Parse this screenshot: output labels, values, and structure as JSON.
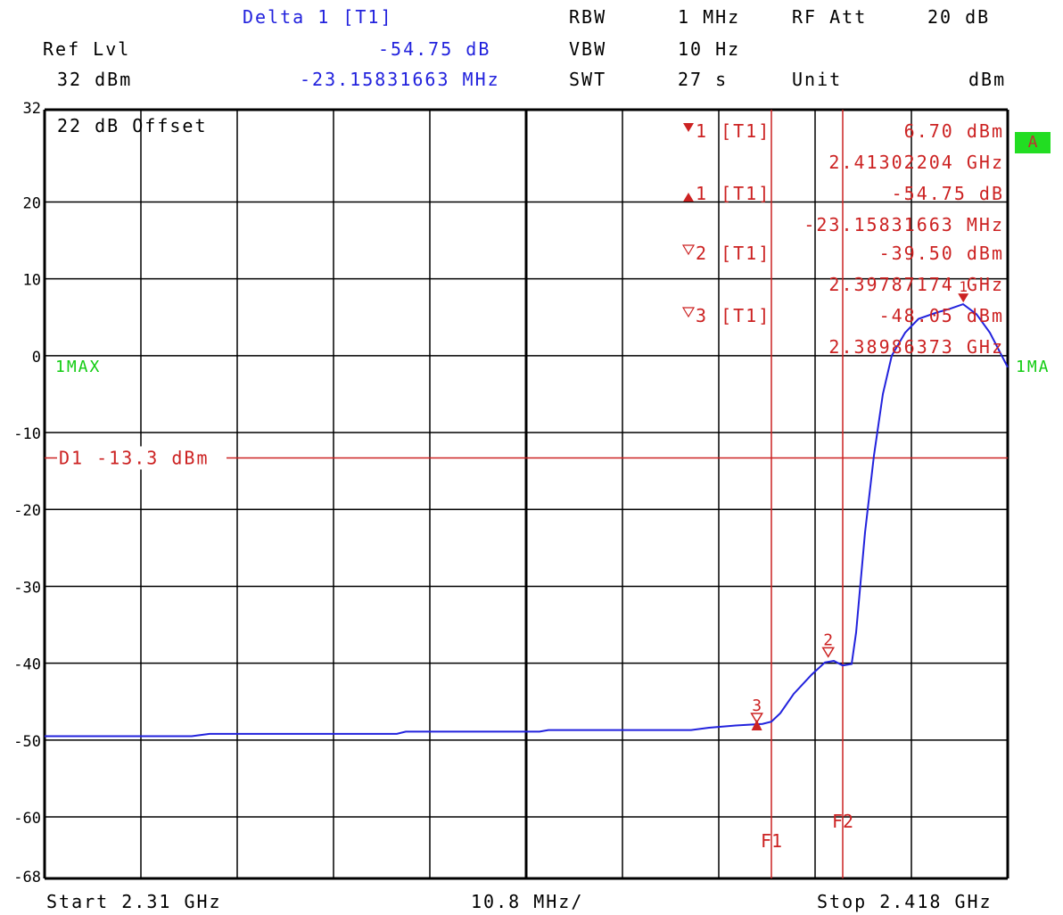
{
  "header": {
    "delta_title": "Delta 1 [T1]",
    "delta_value": "-54.75 dB",
    "delta_freq": "-23.15831663 MHz",
    "ref_lvl_label": "Ref Lvl",
    "ref_lvl_value": "32 dBm",
    "rbw_label": "RBW",
    "rbw_value": "1 MHz",
    "vbw_label": "VBW",
    "vbw_value": "10 Hz",
    "swt_label": "SWT",
    "swt_value": "27 s",
    "rf_att_label": "RF Att",
    "rf_att_value": "20 dB",
    "unit_label": "Unit",
    "unit_value": "dBm"
  },
  "footer": {
    "start": "Start 2.31 GHz",
    "span_per_div": "10.8 MHz/",
    "stop": "Stop 2.418 GHz"
  },
  "side": {
    "trace_badge": "A",
    "trace_label_left": "1MAX",
    "trace_label_right": "1MA"
  },
  "offset_label": "22 dB Offset",
  "display_line": "D1 -13.3 dBm",
  "marker_table": [
    {
      "symbol": "▼",
      "label": "1 [T1]",
      "value": "6.70 dBm",
      "freq": "2.41302204 GHz"
    },
    {
      "symbol": "▲",
      "label": "1 [T1]",
      "value": "-54.75 dB",
      "freq": "-23.15831663 MHz"
    },
    {
      "symbol": "▽",
      "label": "2 [T1]",
      "value": "-39.50 dBm",
      "freq": "2.39787174 GHz"
    },
    {
      "symbol": "▽",
      "label": "3 [T1]",
      "value": "-48.05 dBm",
      "freq": "2.38986373 GHz"
    }
  ],
  "colors": {
    "trace": "#2222dd",
    "markers": "#cc2222",
    "label_green": "#11cc11",
    "grid": "#000000"
  },
  "chart_data": {
    "type": "line",
    "xlabel": "",
    "ylabel": "",
    "xlim": [
      2.31,
      2.418
    ],
    "ylim": [
      -68,
      32
    ],
    "y_ticks": [
      32,
      20,
      10,
      0,
      -10,
      -20,
      -30,
      -40,
      -50,
      -60,
      -68
    ],
    "grid": true,
    "display_line": {
      "label": "D1 -13.3 dBm",
      "y": -13.3
    },
    "freq_lines": [
      {
        "label": "F1",
        "x": 2.3915
      },
      {
        "label": "F2",
        "x": 2.3995
      }
    ],
    "series": [
      {
        "name": "1MAX",
        "x": [
          2.31,
          2.3265,
          2.3285,
          2.3495,
          2.3505,
          2.3655,
          2.3665,
          2.3825,
          2.3845,
          2.3875,
          2.3905,
          2.3915,
          2.3925,
          2.394,
          2.396,
          2.3975,
          2.3985,
          2.3995,
          2.4005,
          2.401,
          2.402,
          2.403,
          2.404,
          2.405,
          2.4065,
          2.408,
          2.41,
          2.4115,
          2.413,
          2.4145,
          2.416,
          2.418
        ],
        "values": [
          -49.5,
          -49.5,
          -49.2,
          -49.2,
          -48.9,
          -48.9,
          -48.7,
          -48.7,
          -48.4,
          -48.1,
          -47.9,
          -47.6,
          -46.5,
          -44.0,
          -41.5,
          -39.9,
          -39.7,
          -40.3,
          -40.1,
          -36.0,
          -23.0,
          -13.0,
          -5.0,
          0.0,
          3.0,
          4.8,
          5.6,
          6.1,
          6.7,
          5.4,
          3.0,
          -1.5
        ]
      }
    ],
    "markers": [
      {
        "label": "1",
        "symbol": "▼",
        "x": 2.41302204,
        "y": 6.7
      },
      {
        "label": "2",
        "symbol": "▽",
        "x": 2.39787174,
        "y": -39.5
      },
      {
        "label": "3",
        "symbol": "▽",
        "x": 2.38986373,
        "y": -48.05
      },
      {
        "label": "",
        "symbol": "▲",
        "x": 2.38986373,
        "y": -48.05
      }
    ]
  }
}
